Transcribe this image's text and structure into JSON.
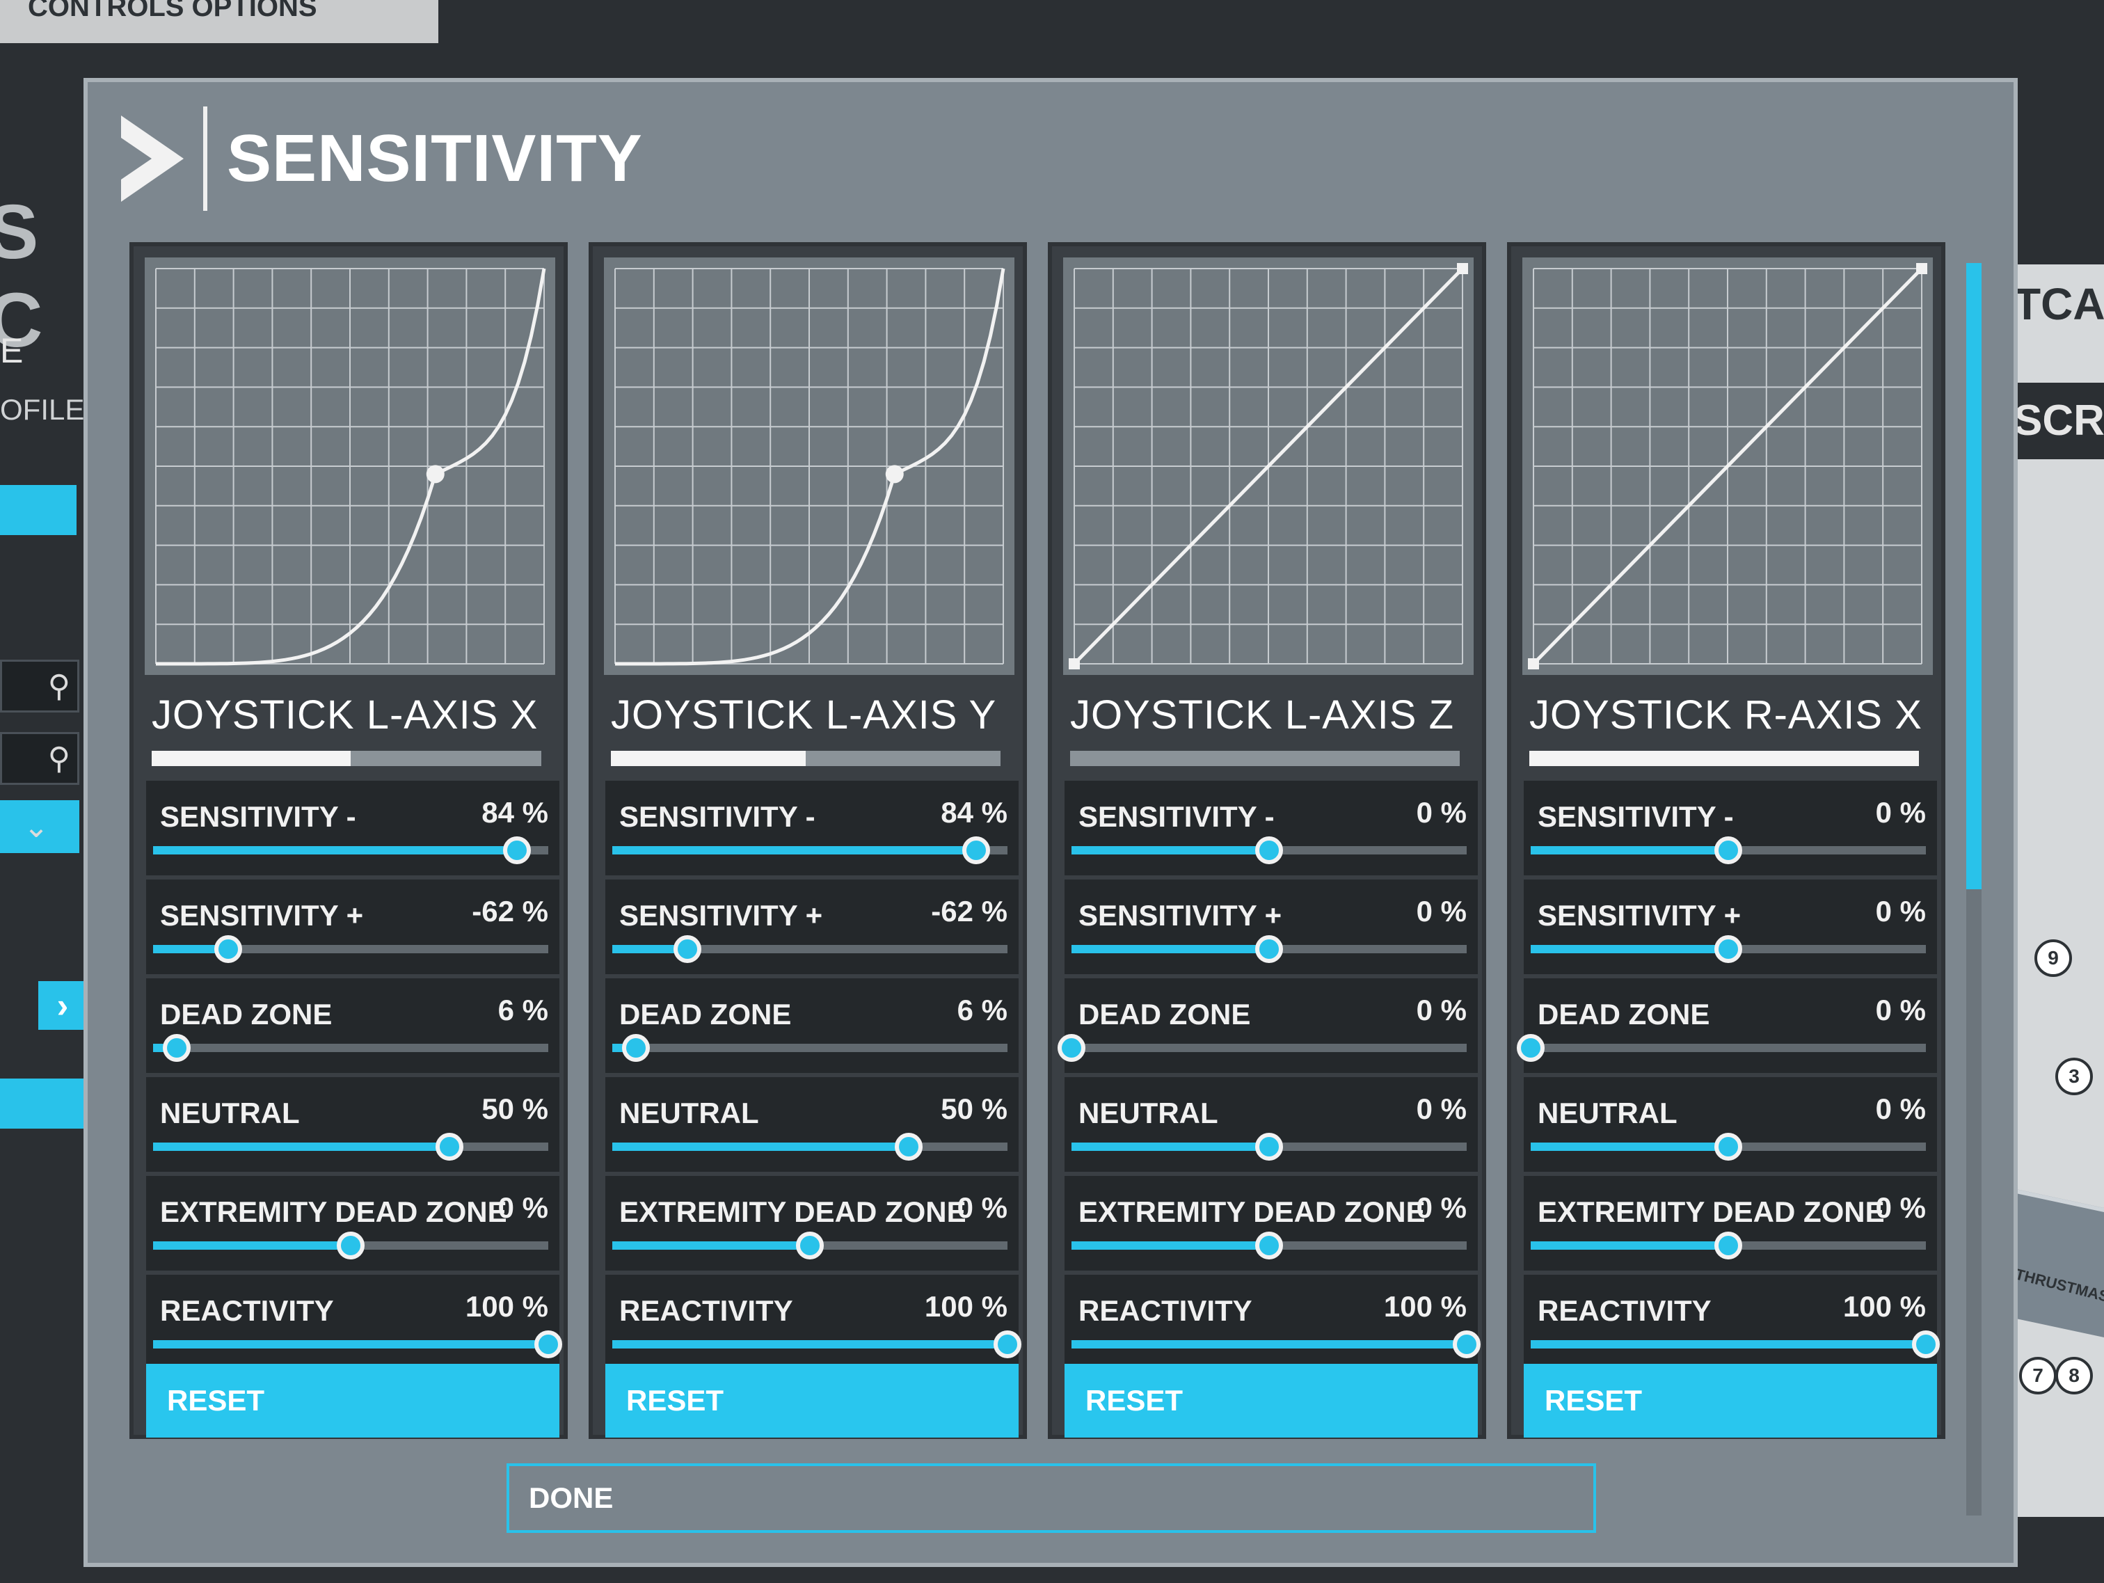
{
  "background": {
    "top_tab": "CONTROLS OPTIONS",
    "left_fragment_big": "S C",
    "left_fragment_e": "E",
    "left_fragment_profile": "OFILE",
    "right_fragment_tca": "TCA C",
    "right_fragment_scri": "SCRI",
    "right_numbers": [
      "9",
      "3",
      "7",
      "8"
    ],
    "device_brand": "THRUSTMASTER"
  },
  "modal": {
    "title": "SENSITIVITY",
    "done_label": "DONE"
  },
  "axes": [
    {
      "name": "JOYSTICK L-AXIS X",
      "level": 0.51,
      "curve": "exponential",
      "settings": [
        {
          "label": "SENSITIVITY -",
          "value_text": "84 %",
          "value": 84,
          "position": 0.92
        },
        {
          "label": "SENSITIVITY +",
          "value_text": "-62 %",
          "value": -62,
          "position": 0.19
        },
        {
          "label": "DEAD ZONE",
          "value_text": "6 %",
          "value": 6,
          "position": 0.06
        },
        {
          "label": "NEUTRAL",
          "value_text": "50 %",
          "value": 50,
          "position": 0.75
        },
        {
          "label": "EXTREMITY DEAD ZONE",
          "value_text": "0 %",
          "value": 0,
          "position": 0.5
        },
        {
          "label": "REACTIVITY",
          "value_text": "100 %",
          "value": 100,
          "position": 1.0
        }
      ],
      "reset_label": "RESET"
    },
    {
      "name": "JOYSTICK L-AXIS Y",
      "level": 0.5,
      "curve": "exponential",
      "settings": [
        {
          "label": "SENSITIVITY -",
          "value_text": "84 %",
          "value": 84,
          "position": 0.92
        },
        {
          "label": "SENSITIVITY +",
          "value_text": "-62 %",
          "value": -62,
          "position": 0.19
        },
        {
          "label": "DEAD ZONE",
          "value_text": "6 %",
          "value": 6,
          "position": 0.06
        },
        {
          "label": "NEUTRAL",
          "value_text": "50 %",
          "value": 50,
          "position": 0.75
        },
        {
          "label": "EXTREMITY DEAD ZONE",
          "value_text": "0 %",
          "value": 0,
          "position": 0.5
        },
        {
          "label": "REACTIVITY",
          "value_text": "100 %",
          "value": 100,
          "position": 1.0
        }
      ],
      "reset_label": "RESET"
    },
    {
      "name": "JOYSTICK L-AXIS Z",
      "level": 0.0,
      "curve": "linear",
      "settings": [
        {
          "label": "SENSITIVITY -",
          "value_text": "0 %",
          "value": 0,
          "position": 0.5
        },
        {
          "label": "SENSITIVITY +",
          "value_text": "0 %",
          "value": 0,
          "position": 0.5
        },
        {
          "label": "DEAD ZONE",
          "value_text": "0 %",
          "value": 0,
          "position": 0.0
        },
        {
          "label": "NEUTRAL",
          "value_text": "0 %",
          "value": 0,
          "position": 0.5
        },
        {
          "label": "EXTREMITY DEAD ZONE",
          "value_text": "0 %",
          "value": 0,
          "position": 0.5
        },
        {
          "label": "REACTIVITY",
          "value_text": "100 %",
          "value": 100,
          "position": 1.0
        }
      ],
      "reset_label": "RESET"
    },
    {
      "name": "JOYSTICK R-AXIS X",
      "level": 1.0,
      "curve": "linear",
      "settings": [
        {
          "label": "SENSITIVITY -",
          "value_text": "0 %",
          "value": 0,
          "position": 0.5
        },
        {
          "label": "SENSITIVITY +",
          "value_text": "0 %",
          "value": 0,
          "position": 0.5
        },
        {
          "label": "DEAD ZONE",
          "value_text": "0 %",
          "value": 0,
          "position": 0.0
        },
        {
          "label": "NEUTRAL",
          "value_text": "0 %",
          "value": 0,
          "position": 0.5
        },
        {
          "label": "EXTREMITY DEAD ZONE",
          "value_text": "0 %",
          "value": 0,
          "position": 0.5
        },
        {
          "label": "REACTIVITY",
          "value_text": "100 %",
          "value": 100,
          "position": 1.0
        }
      ],
      "reset_label": "RESET"
    }
  ],
  "colors": {
    "accent": "#29c2ea",
    "panel": "#3a3f44",
    "row": "#24282b",
    "modal": "#7d878f",
    "graph_bg": "#70797f",
    "curve": "#f2f2f2"
  },
  "scrollbar": {
    "thumb_fraction": 0.5
  }
}
